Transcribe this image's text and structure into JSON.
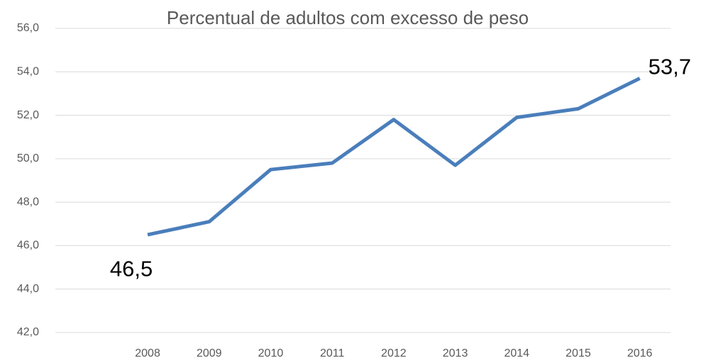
{
  "chart_data": {
    "type": "line",
    "title": "Percentual de adultos com excesso de peso",
    "categories": [
      null,
      "2008",
      "2009",
      "2010",
      "2011",
      "2012",
      "2013",
      "2014",
      "2015",
      "2016"
    ],
    "series": [
      {
        "name": null,
        "color": "#4a7ebb",
        "values": [
          null,
          46.5,
          47.1,
          49.5,
          49.8,
          51.8,
          49.7,
          51.9,
          52.3,
          53.7
        ],
        "value_labels": [
          null,
          "46,5",
          null,
          null,
          null,
          null,
          null,
          null,
          null,
          "53,7"
        ]
      }
    ],
    "ylim": [
      42,
      56
    ],
    "yticks": [
      {
        "value": 42,
        "label": "42,0"
      },
      {
        "value": 44,
        "label": "44,0"
      },
      {
        "value": 46,
        "label": "46,0"
      },
      {
        "value": 48,
        "label": "48,0"
      },
      {
        "value": 50,
        "label": "50,0"
      },
      {
        "value": 52,
        "label": "52,0"
      },
      {
        "value": 54,
        "label": "54,0"
      },
      {
        "value": 56,
        "label": "56,0"
      }
    ],
    "grid": true
  }
}
